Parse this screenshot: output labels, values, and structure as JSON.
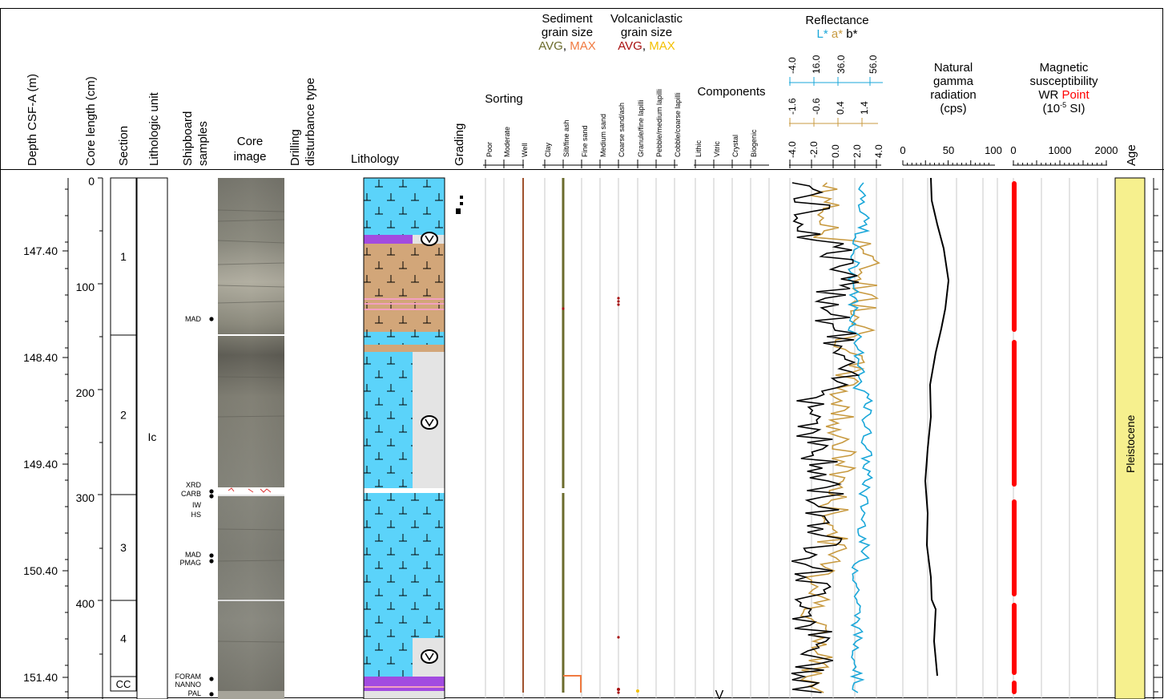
{
  "colors": {
    "calcareous": "#5bd3fa",
    "clay_tan": "#d2a679",
    "ash": "#a24be0",
    "pale_gray": "#e4e4e4",
    "L": "#1aa7d9",
    "a": "#c89a40",
    "b": "#000000",
    "avg_sed": "#6b6b2c",
    "max_sed": "#f07a40",
    "avg_volc": "#a81010",
    "max_volc": "#f3c000",
    "sorting": "#a0522d",
    "msus_point": "#ff0000",
    "age_fill": "#f6f08e"
  },
  "headers": {
    "depth": "Depth CSF-A (m)",
    "core_length": "Core length (cm)",
    "section": "Section",
    "unit": "Lithologic unit",
    "samples": [
      "Shipboard",
      "samples"
    ],
    "core_image": [
      "Core",
      "image"
    ],
    "disturbance": [
      "Drilling",
      "disturbance type"
    ],
    "lithology": "Lithology",
    "grading": "Grading",
    "sorting": "Sorting",
    "sorting_ticks": [
      "Poor",
      "Moderate",
      "Well"
    ],
    "sed_title": [
      "Sediment",
      "grain size"
    ],
    "sed_avg": "AVG",
    "sed_sep": ", ",
    "sed_max": "MAX",
    "volc_title": [
      "Volcaniclastic",
      "grain size"
    ],
    "volc_avg": "AVG",
    "volc_sep": ", ",
    "volc_max": "MAX",
    "grain_ticks": [
      "Clay",
      "Silt/fine ash",
      "Fine sand",
      "Medium sand",
      "Coarse sand/ash",
      "Granule/fine lapilli",
      "Pebble/medium lapilli",
      "Cobble/coarse lapilli"
    ],
    "components": "Components",
    "component_ticks": [
      "Lithic",
      "Vitric",
      "Crystal",
      "Biogenic"
    ],
    "reflectance": "Reflectance",
    "refl_L": "L*",
    "refl_a": "a*",
    "refl_b": "b*",
    "l_ticks": [
      "-4.0",
      "16.0",
      "36.0",
      "56.0"
    ],
    "a_ticks": [
      "-1.6",
      "-0.6",
      "0.4",
      "1.4"
    ],
    "b_ticks": [
      "-4.0",
      "-2.0",
      "0.0",
      "2.0",
      "4.0"
    ],
    "ngr": [
      "Natural",
      "gamma",
      "radiation",
      "(cps)"
    ],
    "ngr_ticks": [
      "0",
      "50",
      "100"
    ],
    "ms_title": [
      "Magnetic",
      "susceptibility"
    ],
    "ms_wr": "WR ",
    "ms_point": "Point",
    "ms_unit_pre": "(10",
    "ms_unit_exp": "-5",
    "ms_unit_post": " SI)",
    "ms_ticks": [
      "0",
      "1000",
      "2000"
    ],
    "age": "Age"
  },
  "depth_ticks": [
    "147.40",
    "148.40",
    "149.40",
    "150.40",
    "151.40"
  ],
  "length_ticks": [
    "0",
    "100",
    "200",
    "300",
    "400"
  ],
  "sections": [
    "1",
    "2",
    "3",
    "4",
    "CC"
  ],
  "unit": "Ic",
  "samples": [
    {
      "label": "MAD"
    },
    {
      "label": "XRD"
    },
    {
      "label": "CARB"
    },
    {
      "label": "IW"
    },
    {
      "label": "HS"
    },
    {
      "label": "MAD"
    },
    {
      "label": "PMAG"
    },
    {
      "label": "FORAM"
    },
    {
      "label": "NANNO"
    },
    {
      "label": "PAL"
    }
  ],
  "component_mark": "V",
  "age": "Pleistocene"
}
